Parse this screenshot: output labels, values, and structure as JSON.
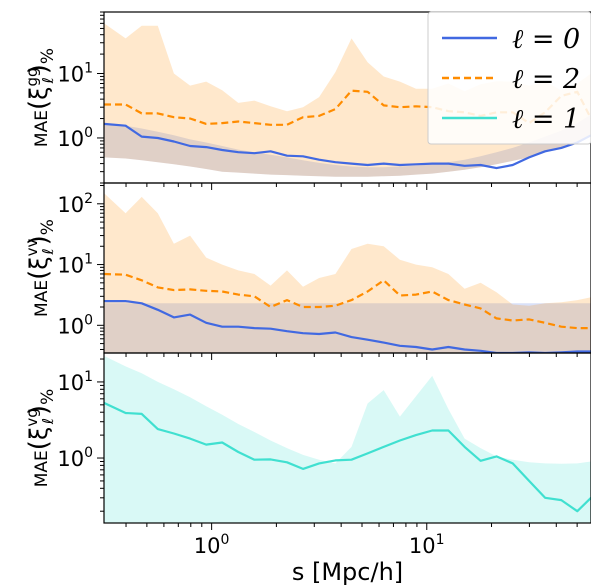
{
  "chart_data": {
    "type": "line",
    "x_label": "s [Mpc/h]",
    "x_scale": "log",
    "x_range": [
      0.316,
      58
    ],
    "x_ticks": [
      {
        "value": 1,
        "base": "10",
        "exp": "0"
      },
      {
        "value": 10,
        "base": "10",
        "exp": "1"
      }
    ],
    "legend": {
      "placement": "top-right",
      "entries": [
        {
          "label": "ℓ = 0",
          "color": "#4169e1",
          "dash": "solid"
        },
        {
          "label": "ℓ = 2",
          "color": "#ff8c00",
          "dash": "dashed"
        },
        {
          "label": "ℓ = 1",
          "color": "#40e0d0",
          "dash": "solid"
        }
      ]
    },
    "panels": [
      {
        "id": "gg",
        "y_label": {
          "pre": "MAE",
          "main": "ξ",
          "sup": "gg",
          "sub": "ℓ",
          "post": "%"
        },
        "y_scale": "log",
        "y_range": [
          0.2,
          90
        ],
        "y_ticks": [
          {
            "value": 1,
            "base": "10",
            "exp": "0"
          },
          {
            "value": 10,
            "base": "10",
            "exp": "1"
          }
        ],
        "x": [
          0.316,
          0.398,
          0.473,
          0.562,
          0.668,
          0.794,
          0.944,
          1.12,
          1.33,
          1.58,
          1.88,
          2.24,
          2.66,
          3.16,
          3.76,
          4.47,
          5.31,
          6.31,
          7.5,
          8.91,
          10.6,
          12.6,
          15.0,
          17.8,
          21.1,
          25.1,
          29.9,
          35.5,
          42.2,
          50.1,
          58.0
        ],
        "series": [
          {
            "name": "ℓ = 0",
            "color": "#4169e1",
            "dash": "solid",
            "values": [
              1.65,
              1.55,
              1.05,
              1.0,
              0.88,
              0.75,
              0.72,
              0.65,
              0.6,
              0.58,
              0.62,
              0.53,
              0.52,
              0.46,
              0.42,
              0.4,
              0.38,
              0.4,
              0.38,
              0.39,
              0.4,
              0.4,
              0.37,
              0.38,
              0.34,
              0.38,
              0.5,
              0.62,
              0.7,
              0.85,
              1.1
            ],
            "band_upper": [
              1.65,
              1.55,
              1.4,
              1.25,
              1.1,
              0.95,
              0.85,
              0.75,
              0.66,
              0.6,
              0.55,
              0.5,
              0.45,
              0.41,
              0.38,
              0.36,
              0.35,
              0.35,
              0.36,
              0.37,
              0.39,
              0.42,
              0.46,
              0.52,
              0.6,
              0.7,
              0.85,
              1.05,
              1.3,
              1.7,
              2.3
            ]
          },
          {
            "name": "ℓ = 2",
            "color": "#ff8c00",
            "dash": "dashed",
            "values": [
              3.3,
              3.3,
              2.4,
              2.4,
              2.1,
              2.0,
              1.65,
              1.7,
              1.8,
              1.7,
              1.6,
              1.6,
              2.1,
              2.2,
              2.8,
              5.4,
              5.2,
              3.2,
              3.0,
              3.1,
              3.0,
              2.6,
              2.5,
              2.2,
              2.5,
              2.5,
              1.7,
              2.5,
              4.5,
              5.2,
              2.0
            ],
            "band_upper": [
              60,
              35,
              55,
              55,
              10,
              6.5,
              7.5,
              5.5,
              3.5,
              3.8,
              3.1,
              2.6,
              3.0,
              4.3,
              10.5,
              35,
              15,
              9,
              7.5,
              5.8,
              5.8,
              7,
              5.3,
              6.8,
              7.6,
              7.5,
              6.5,
              7.5,
              5.5,
              7,
              10
            ]
          }
        ],
        "band_lower": [
          0.5,
          0.48,
          0.45,
          0.42,
          0.39,
          0.36,
          0.33,
          0.3,
          0.29,
          0.28,
          0.27,
          0.265,
          0.26,
          0.255,
          0.25,
          0.25,
          0.25,
          0.255,
          0.26,
          0.27,
          0.28,
          0.3,
          0.32,
          0.35,
          0.39,
          0.44,
          0.5,
          0.6,
          0.72,
          0.88,
          1.1
        ]
      },
      {
        "id": "vv",
        "y_label": {
          "pre": "MAE",
          "main": "ξ",
          "sup": "vv",
          "sub": "ℓ",
          "post": "%"
        },
        "y_scale": "log",
        "y_range": [
          0.35,
          220
        ],
        "y_ticks": [
          {
            "value": 1,
            "base": "10",
            "exp": "0"
          },
          {
            "value": 10,
            "base": "10",
            "exp": "1"
          },
          {
            "value": 100,
            "base": "10",
            "exp": "2"
          }
        ],
        "x": [
          0.316,
          0.398,
          0.473,
          0.562,
          0.668,
          0.794,
          0.944,
          1.12,
          1.33,
          1.58,
          1.88,
          2.24,
          2.66,
          3.16,
          3.76,
          4.47,
          5.31,
          6.31,
          7.5,
          8.91,
          10.6,
          12.6,
          15.0,
          17.8,
          21.1,
          25.1,
          29.9,
          35.5,
          42.2,
          50.1,
          58.0
        ],
        "series": [
          {
            "name": "ℓ = 0",
            "color": "#4169e1",
            "dash": "solid",
            "values": [
              2.5,
              2.5,
              2.3,
              1.8,
              1.35,
              1.5,
              1.1,
              0.95,
              0.95,
              0.9,
              0.88,
              0.8,
              0.74,
              0.72,
              0.76,
              0.64,
              0.58,
              0.52,
              0.46,
              0.44,
              0.4,
              0.44,
              0.4,
              0.38,
              0.34,
              0.33,
              0.36,
              0.35,
              0.36,
              0.37,
              0.37
            ],
            "band_upper": [
              2.3,
              2.3,
              2.3,
              2.3,
              2.3,
              2.3,
              2.3,
              2.3,
              2.3,
              2.3,
              2.3,
              2.3,
              2.3,
              2.3,
              2.3,
              2.3,
              2.3,
              2.3,
              2.3,
              2.3,
              2.3,
              2.3,
              2.3,
              2.3,
              2.3,
              2.3,
              2.3,
              2.3,
              2.3,
              2.3,
              2.3
            ]
          },
          {
            "name": "ℓ = 2",
            "color": "#ff8c00",
            "dash": "dashed",
            "values": [
              7,
              6.8,
              5.5,
              4.2,
              3.8,
              3.9,
              3.7,
              3.6,
              3.2,
              3.0,
              2.0,
              2.6,
              2.0,
              2.0,
              2.1,
              2.6,
              3.6,
              5.5,
              3.1,
              3.2,
              3.6,
              2.6,
              2.2,
              1.9,
              1.3,
              1.2,
              1.25,
              1.1,
              0.95,
              0.9,
              0.9
            ],
            "band_upper": [
              150,
              70,
              130,
              70,
              22,
              30,
              13,
              10,
              8,
              7,
              4.5,
              8,
              4.3,
              6,
              7,
              18,
              22,
              20,
              12,
              10,
              9,
              7,
              4,
              5,
              3.5,
              2.2,
              2.1,
              2.3,
              2.4,
              2.6,
              2.9
            ]
          }
        ],
        "band_lower": [
          0.3,
          0.3,
          0.3,
          0.3,
          0.3,
          0.3,
          0.3,
          0.3,
          0.3,
          0.3,
          0.3,
          0.3,
          0.3,
          0.3,
          0.3,
          0.3,
          0.3,
          0.3,
          0.3,
          0.3,
          0.3,
          0.3,
          0.3,
          0.3,
          0.3,
          0.3,
          0.3,
          0.3,
          0.3,
          0.3,
          0.3
        ]
      },
      {
        "id": "vg",
        "y_label": {
          "pre": "MAE",
          "main": "ξ",
          "sup": "vg",
          "sub": "ℓ",
          "post": "%"
        },
        "y_scale": "log",
        "y_range": [
          0.14,
          24
        ],
        "y_ticks": [
          {
            "value": 1,
            "base": "10",
            "exp": "0"
          },
          {
            "value": 10,
            "base": "10",
            "exp": "1"
          }
        ],
        "x": [
          0.316,
          0.398,
          0.473,
          0.562,
          0.668,
          0.794,
          0.944,
          1.12,
          1.33,
          1.58,
          1.88,
          2.24,
          2.66,
          3.16,
          3.76,
          4.47,
          5.31,
          6.31,
          7.5,
          8.91,
          10.6,
          12.6,
          15.0,
          17.8,
          21.1,
          25.1,
          29.9,
          35.5,
          42.2,
          50.1,
          58.0
        ],
        "series": [
          {
            "name": "ℓ = 1",
            "color": "#40e0d0",
            "dash": "solid",
            "values": [
              5.3,
              3.9,
              3.8,
              2.4,
              2.1,
              1.8,
              1.5,
              1.6,
              1.2,
              0.95,
              0.96,
              0.88,
              0.72,
              0.85,
              0.93,
              0.95,
              1.15,
              1.4,
              1.7,
              2.0,
              2.3,
              2.3,
              1.4,
              0.92,
              1.05,
              0.85,
              0.5,
              0.3,
              0.28,
              0.2,
              0.3
            ],
            "band_upper": [
              22,
              16,
              13,
              10,
              8,
              6.3,
              4.8,
              3.7,
              2.8,
              2.2,
              1.7,
              1.35,
              1.1,
              0.95,
              0.85,
              1.4,
              5.2,
              7.8,
              3.5,
              6.5,
              12,
              4.4,
              1.8,
              1.35,
              1.05,
              0.95,
              0.88,
              0.85,
              0.84,
              0.85,
              0.9
            ]
          }
        ],
        "band_lower": [
          0.14,
          0.14,
          0.14,
          0.14,
          0.14,
          0.14,
          0.14,
          0.14,
          0.14,
          0.14,
          0.14,
          0.14,
          0.14,
          0.14,
          0.14,
          0.14,
          0.14,
          0.14,
          0.14,
          0.14,
          0.14,
          0.14,
          0.14,
          0.14,
          0.14,
          0.14,
          0.14,
          0.14,
          0.14,
          0.14,
          0.14
        ]
      }
    ]
  }
}
